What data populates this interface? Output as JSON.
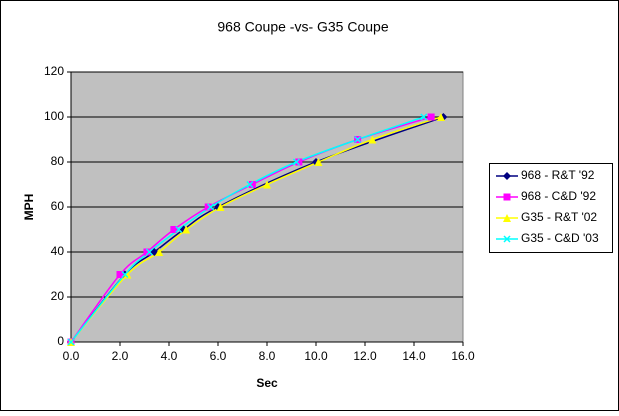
{
  "chart_data": {
    "type": "line",
    "title": "968 Coupe -vs- G35 Coupe",
    "x_label": "Sec",
    "y_label": "MPH",
    "xlim": [
      0,
      16
    ],
    "ylim": [
      0,
      120
    ],
    "xticks": [
      {
        "value": 0,
        "label": "0.0"
      },
      {
        "value": 2,
        "label": "2.0"
      },
      {
        "value": 4,
        "label": "4.0"
      },
      {
        "value": 6,
        "label": "6.0"
      },
      {
        "value": 8,
        "label": "8.0"
      },
      {
        "value": 10,
        "label": "10.0"
      },
      {
        "value": 12,
        "label": "12.0"
      },
      {
        "value": 14,
        "label": "14.0"
      },
      {
        "value": 16,
        "label": "16.0"
      }
    ],
    "yticks": [
      0,
      20,
      40,
      60,
      80,
      100,
      120
    ],
    "grid": true,
    "legend": "right",
    "series": [
      {
        "name": "968 - R&T '92",
        "color": "#000080",
        "marker": "diamond",
        "x": [
          0,
          2.2,
          3.4,
          4.6,
          6.0,
          10.0,
          15.2
        ],
        "values": [
          0,
          30,
          40,
          50,
          60,
          80,
          100
        ]
      },
      {
        "name": "968 - C&D '92",
        "color": "#ff00ff",
        "marker": "square",
        "x": [
          0,
          2.0,
          3.1,
          4.2,
          5.6,
          7.4,
          9.3,
          11.7,
          14.7
        ],
        "values": [
          0,
          30,
          40,
          50,
          60,
          70,
          80,
          90,
          100
        ]
      },
      {
        "name": "G35 - R&T '02",
        "color": "#ffff00",
        "marker": "triangle",
        "x": [
          0,
          2.3,
          3.6,
          4.7,
          6.1,
          8.0,
          10.1,
          12.3,
          15.1
        ],
        "values": [
          0,
          30,
          40,
          50,
          60,
          70,
          80,
          90,
          100
        ]
      },
      {
        "name": "G35 - C&D '03",
        "color": "#00ffff",
        "marker": "x",
        "x": [
          0,
          2.2,
          3.2,
          4.4,
          5.7,
          7.3,
          9.2,
          11.7,
          14.4
        ],
        "values": [
          0,
          30,
          40,
          50,
          60,
          70,
          80,
          90,
          100
        ]
      }
    ]
  }
}
